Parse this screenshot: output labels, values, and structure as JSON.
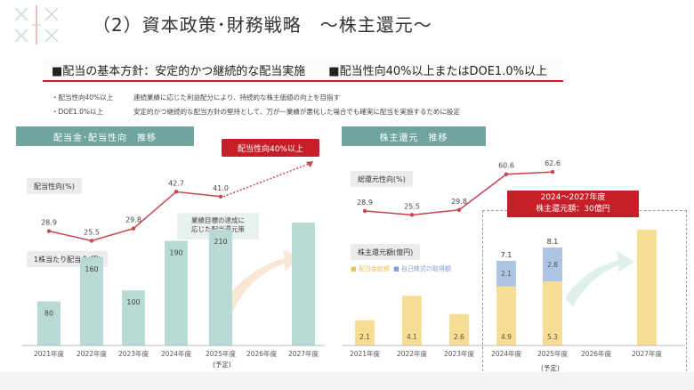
{
  "title": "（2）資本政策･財務戦略　～株主還元～",
  "policy": {
    "left": "■配当の基本方針：安定的かつ継続的な配当実施",
    "right": "■配当性向40%以上またはDOE1.0%以上"
  },
  "notes": [
    {
      "label": "・配当性向40%以上",
      "text": "連続業績に応じた利益配分により、持続的な株主価値の向上を目指す"
    },
    {
      "label": "・DOE1.0%以上",
      "text": "安定的かつ継続的な配当方針の堅持として、万が一業績が悪化した場合でも確実に配当を実施するために設定"
    }
  ],
  "left_panel": {
    "header": "配当金･配当性向　推移",
    "payout_label": "配当性向(%)",
    "dps_label": "1株当たり配当金(円)",
    "callout_red": "配当性向40%以上",
    "callout_teal": [
      "業績目標の達成に",
      "応じた配当還元策"
    ],
    "forecast": "(予定)"
  },
  "right_panel": {
    "header": "株主還元　推移",
    "total_label": "総還元性向(%)",
    "amount_label": "株主還元額(億円)",
    "legend_dividend": "■ 配当金総額",
    "legend_buyback": "■ 自己株式の取得額",
    "callout": [
      "2024～2027年度",
      "株主還元額：30億円"
    ],
    "forecast": "(予定)"
  },
  "chart_data": [
    {
      "type": "bar+line",
      "title": "配当金･配当性向　推移",
      "categories": [
        "2021年度",
        "2022年度",
        "2023年度",
        "2024年度",
        "2025年度",
        "2026年度",
        "2027年度"
      ],
      "series": [
        {
          "name": "1株当たり配当金(円)",
          "type": "bar",
          "values": [
            80,
            160,
            100,
            190,
            210,
            null,
            null
          ]
        },
        {
          "name": "配当性向(%)",
          "type": "line",
          "values": [
            28.9,
            25.5,
            29.8,
            42.7,
            41.0,
            null,
            null
          ]
        }
      ],
      "bar_labels": [
        "80",
        "160",
        "100",
        "190",
        "210",
        "",
        ""
      ],
      "line_labels": [
        "28.9",
        "25.5",
        "29.8",
        "42.7",
        "41.0"
      ]
    },
    {
      "type": "stacked-bar+line",
      "title": "株主還元　推移",
      "categories": [
        "2021年度",
        "2022年度",
        "2023年度",
        "2024年度",
        "2025年度",
        "2026年度",
        "2027年度"
      ],
      "series": [
        {
          "name": "配当金総額",
          "type": "bar",
          "values": [
            2.1,
            4.1,
            2.6,
            4.9,
            5.3,
            null,
            null
          ]
        },
        {
          "name": "自己株式の取得額",
          "type": "bar",
          "values": [
            0,
            0,
            0,
            2.1,
            2.8,
            null,
            null
          ]
        },
        {
          "name": "総還元性向(%)",
          "type": "line",
          "values": [
            28.9,
            25.5,
            29.8,
            60.6,
            62.6,
            null,
            null
          ]
        }
      ],
      "total_labels": [
        "",
        "",
        "",
        "7.1",
        "8.1",
        "",
        ""
      ],
      "dividend_labels": [
        "2.1",
        "4.1",
        "2.6",
        "4.9",
        "5.3",
        "",
        ""
      ],
      "buyback_labels": [
        "",
        "",
        "",
        "2.1",
        "2.8",
        "",
        ""
      ],
      "line_labels": [
        "28.9",
        "25.5",
        "29.8",
        "60.6",
        "62.6"
      ]
    }
  ],
  "colors": {
    "teal_header": "#6fa4a0",
    "dps_bar": "#b9d9d4",
    "red": "#c51f2a",
    "dividend": "#f7dc93",
    "buyback": "#aec4e4",
    "line": "#c9454e"
  }
}
